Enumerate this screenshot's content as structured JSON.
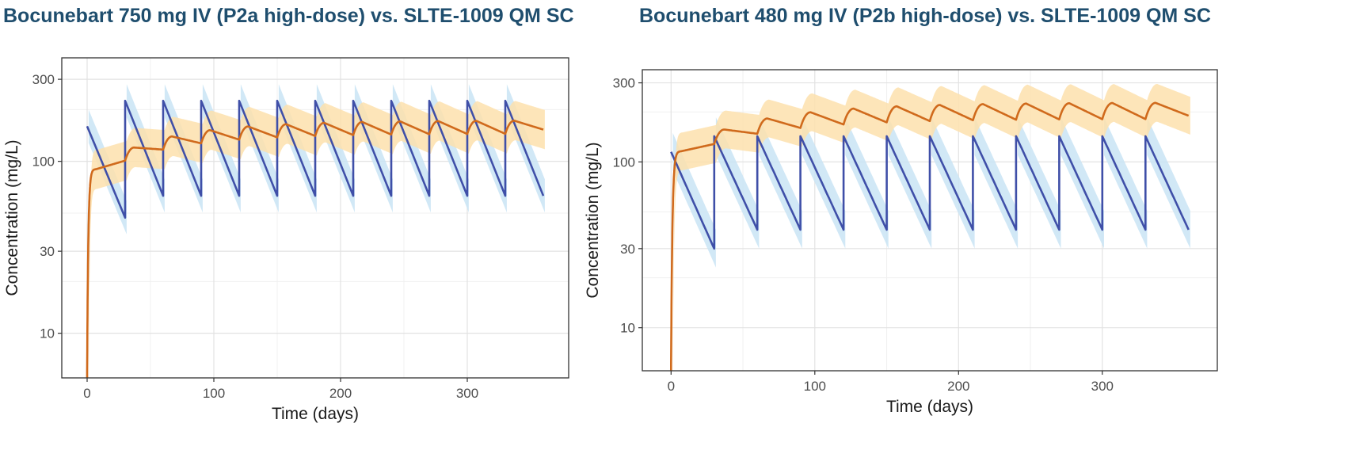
{
  "chart_data": [
    {
      "type": "line",
      "title": "Bocunebart 750 mg IV (P2a high-dose) vs. SLTE-1009 QM SC",
      "xlabel": "Time (days)",
      "ylabel": "Concentration (mg/L)",
      "x_scale": "linear",
      "y_scale": "log",
      "xlim": [
        -20,
        380
      ],
      "ylim": [
        5.5,
        400
      ],
      "x_ticks": [
        0,
        100,
        200,
        300
      ],
      "x_tick_labels": [
        "0",
        "100",
        "200",
        "300"
      ],
      "y_ticks": [
        10,
        30,
        100,
        300
      ],
      "y_tick_labels": [
        "10",
        "30",
        "100",
        "300"
      ],
      "grid": true,
      "legend": "none",
      "series": [
        {
          "color": "#3f4fa8",
          "band_color": "#c9e4f5",
          "model": "iv_sawtooth",
          "dose_interval_days": 30,
          "first_dose_day": 0,
          "last_day": 360,
          "first_peak": 160,
          "first_trough": 47,
          "peak": 225,
          "trough": 63,
          "band_ratio": 1.25
        },
        {
          "color": "#d06a1c",
          "band_color": "#fde1ad",
          "model": "sc_accumulation",
          "dose_interval_days": 30,
          "first_dose_day": 0,
          "last_day": 360,
          "start_value": 6,
          "first_peak": 90,
          "peak_day_after_dose": 7,
          "steady_peak": 173,
          "steady_trough": 145,
          "end_value": 153,
          "band_ratio": 1.3
        }
      ]
    },
    {
      "type": "line",
      "title": "Bocunebart 480 mg IV (P2b high-dose) vs. SLTE-1009 QM SC",
      "xlabel": "Time (days)",
      "ylabel": "Concentration (mg/L)",
      "x_scale": "linear",
      "y_scale": "log",
      "xlim": [
        -20,
        380
      ],
      "ylim": [
        5.5,
        360
      ],
      "x_ticks": [
        0,
        100,
        200,
        300
      ],
      "x_tick_labels": [
        "0",
        "100",
        "200",
        "300"
      ],
      "y_ticks": [
        10,
        30,
        100,
        300
      ],
      "y_tick_labels": [
        "10",
        "30",
        "100",
        "300"
      ],
      "grid": true,
      "legend": "none",
      "series": [
        {
          "color": "#3f4fa8",
          "band_color": "#c9e4f5",
          "model": "iv_sawtooth",
          "dose_interval_days": 30,
          "first_dose_day": 0,
          "last_day": 360,
          "first_peak": 115,
          "first_trough": 30,
          "peak": 143,
          "trough": 39,
          "band_ratio": 1.3
        },
        {
          "color": "#d06a1c",
          "band_color": "#fde1ad",
          "model": "sc_accumulation",
          "dose_interval_days": 30,
          "first_dose_day": 0,
          "last_day": 360,
          "start_value": 6,
          "first_peak": 116,
          "peak_day_after_dose": 7,
          "steady_peak": 228,
          "steady_trough": 182,
          "end_value": 190,
          "band_ratio": 1.3
        }
      ]
    }
  ]
}
